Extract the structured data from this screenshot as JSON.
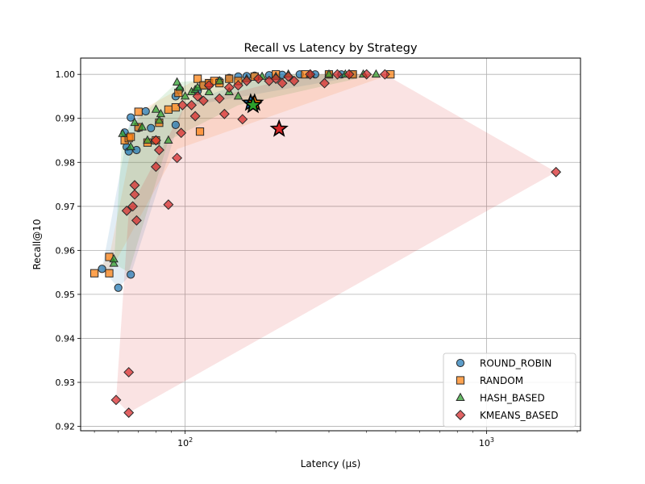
{
  "chart_data": {
    "type": "scatter",
    "title": "Recall vs Latency by Strategy",
    "xlabel": "Latency (μs)",
    "ylabel": "Recall@10",
    "xscale": "log",
    "xlim": [
      45,
      2050
    ],
    "ylim": [
      0.919,
      1.0037
    ],
    "x_major_ticks": [
      {
        "value": 100,
        "base": "10",
        "exp": "2"
      },
      {
        "value": 1000,
        "base": "10",
        "exp": "3"
      }
    ],
    "y_ticks": [
      0.92,
      0.93,
      0.94,
      0.95,
      0.96,
      0.97,
      0.98,
      0.99,
      1.0
    ],
    "y_tick_labels": [
      "0.92",
      "0.93",
      "0.94",
      "0.95",
      "0.96",
      "0.97",
      "0.98",
      "0.99",
      "1.00"
    ],
    "grid": true,
    "legend_position": "bottom-right",
    "series": [
      {
        "name": "ROUND_ROBIN",
        "marker": "circle",
        "color": "#1f77b4",
        "hull": [
          [
            53,
            0.9558
          ],
          [
            60,
            0.9515
          ],
          [
            66,
            0.9545
          ],
          [
            100,
            0.9935
          ],
          [
            180,
            0.9995
          ],
          [
            330,
            1.0
          ],
          [
            370,
            0.9995
          ],
          [
            66,
            0.9905
          ],
          [
            53,
            0.9558
          ]
        ],
        "points": [
          [
            53,
            0.9558
          ],
          [
            60,
            0.9515
          ],
          [
            66,
            0.9545
          ],
          [
            63,
            0.9868
          ],
          [
            64,
            0.9835
          ],
          [
            65,
            0.9825
          ],
          [
            66,
            0.9902
          ],
          [
            69,
            0.9828
          ],
          [
            70,
            0.9878
          ],
          [
            74,
            0.9916
          ],
          [
            77,
            0.9878
          ],
          [
            93,
            0.9885
          ],
          [
            93,
            0.995
          ],
          [
            96,
            0.9965
          ],
          [
            110,
            0.9962
          ],
          [
            115,
            0.9975
          ],
          [
            120,
            0.998
          ],
          [
            130,
            0.9985
          ],
          [
            140,
            0.9992
          ],
          [
            150,
            0.9995
          ],
          [
            160,
            0.9996
          ],
          [
            170,
            0.9997
          ],
          [
            190,
            0.9998
          ],
          [
            210,
            0.9999
          ],
          [
            240,
            1.0
          ],
          [
            270,
            1.0
          ],
          [
            300,
            1.0
          ],
          [
            330,
            1.0
          ],
          [
            360,
            1.0
          ]
        ],
        "mean": [
          165,
          0.9935
        ]
      },
      {
        "name": "RANDOM",
        "marker": "square",
        "color": "#ff7f0e",
        "hull": [
          [
            50,
            0.9548
          ],
          [
            56,
            0.9548
          ],
          [
            94,
            0.983
          ],
          [
            480,
            1.0
          ],
          [
            200,
            1.0
          ],
          [
            110,
            0.999
          ],
          [
            70,
            0.9915
          ],
          [
            56,
            0.9585
          ],
          [
            50,
            0.9548
          ]
        ],
        "points": [
          [
            50,
            0.9548
          ],
          [
            56,
            0.9548
          ],
          [
            56,
            0.9585
          ],
          [
            63,
            0.985
          ],
          [
            65,
            0.9855
          ],
          [
            66,
            0.9858
          ],
          [
            70,
            0.988
          ],
          [
            70,
            0.9915
          ],
          [
            75,
            0.9845
          ],
          [
            80,
            0.985
          ],
          [
            82,
            0.989
          ],
          [
            88,
            0.992
          ],
          [
            93,
            0.9925
          ],
          [
            95,
            0.9958
          ],
          [
            112,
            0.987
          ],
          [
            110,
            0.999
          ],
          [
            115,
            0.9975
          ],
          [
            120,
            0.998
          ],
          [
            125,
            0.9985
          ],
          [
            130,
            0.998
          ],
          [
            140,
            0.999
          ],
          [
            150,
            0.9985
          ],
          [
            170,
            0.9995
          ],
          [
            200,
            1.0
          ],
          [
            250,
            1.0
          ],
          [
            300,
            1.0
          ],
          [
            360,
            1.0
          ],
          [
            480,
            1.0
          ]
        ],
        "mean": [
          170,
          0.9935
        ]
      },
      {
        "name": "HASH_BASED",
        "marker": "triangle",
        "color": "#2ca02c",
        "hull": [
          [
            58,
            0.957
          ],
          [
            62,
            0.9865
          ],
          [
            94,
            0.9982
          ],
          [
            200,
            1.0
          ],
          [
            430,
            1.0
          ],
          [
            150,
            0.993
          ],
          [
            88,
            0.985
          ],
          [
            65,
            0.955
          ],
          [
            58,
            0.957
          ]
        ],
        "points": [
          [
            58,
            0.957
          ],
          [
            58,
            0.958
          ],
          [
            62,
            0.9865
          ],
          [
            66,
            0.9835
          ],
          [
            68,
            0.989
          ],
          [
            72,
            0.988
          ],
          [
            75,
            0.985
          ],
          [
            80,
            0.992
          ],
          [
            82,
            0.9895
          ],
          [
            83,
            0.991
          ],
          [
            88,
            0.985
          ],
          [
            94,
            0.9982
          ],
          [
            96,
            0.997
          ],
          [
            100,
            0.995
          ],
          [
            105,
            0.996
          ],
          [
            108,
            0.9965
          ],
          [
            110,
            0.997
          ],
          [
            120,
            0.996
          ],
          [
            130,
            0.9985
          ],
          [
            140,
            0.996
          ],
          [
            150,
            0.995
          ],
          [
            160,
            0.999
          ],
          [
            180,
            0.9995
          ],
          [
            200,
            0.9995
          ],
          [
            220,
            1.0
          ],
          [
            260,
            1.0
          ],
          [
            300,
            1.0
          ],
          [
            340,
            1.0
          ],
          [
            390,
            1.0
          ],
          [
            430,
            1.0
          ]
        ],
        "mean": [
          168,
          0.993
        ]
      },
      {
        "name": "KMEANS_BASED",
        "marker": "diamond",
        "color": "#d62728",
        "hull": [
          [
            59,
            0.926
          ],
          [
            65,
            0.9231
          ],
          [
            1700,
            0.9778
          ],
          [
            460,
            1.0
          ],
          [
            250,
            1.0
          ],
          [
            100,
            0.993
          ],
          [
            65,
            0.969
          ],
          [
            59,
            0.926
          ]
        ],
        "points": [
          [
            59,
            0.926
          ],
          [
            65,
            0.9323
          ],
          [
            65,
            0.9231
          ],
          [
            64,
            0.969
          ],
          [
            67,
            0.97
          ],
          [
            68,
            0.9727
          ],
          [
            68,
            0.9748
          ],
          [
            69,
            0.9668
          ],
          [
            80,
            0.979
          ],
          [
            80,
            0.985
          ],
          [
            82,
            0.9828
          ],
          [
            88,
            0.9704
          ],
          [
            94,
            0.981
          ],
          [
            97,
            0.9867
          ],
          [
            98,
            0.993
          ],
          [
            105,
            0.993
          ],
          [
            108,
            0.9905
          ],
          [
            110,
            0.995
          ],
          [
            115,
            0.994
          ],
          [
            120,
            0.9975
          ],
          [
            130,
            0.9945
          ],
          [
            135,
            0.991
          ],
          [
            140,
            0.997
          ],
          [
            150,
            0.9975
          ],
          [
            155,
            0.9898
          ],
          [
            160,
            0.9985
          ],
          [
            175,
            0.999
          ],
          [
            190,
            0.9985
          ],
          [
            200,
            0.999
          ],
          [
            210,
            0.998
          ],
          [
            220,
            0.9995
          ],
          [
            230,
            0.9985
          ],
          [
            260,
            1.0
          ],
          [
            290,
            0.998
          ],
          [
            320,
            1.0
          ],
          [
            350,
            1.0
          ],
          [
            400,
            1.0
          ],
          [
            460,
            1.0
          ],
          [
            1700,
            0.9778
          ]
        ],
        "mean": [
          205,
          0.9876
        ]
      }
    ]
  }
}
